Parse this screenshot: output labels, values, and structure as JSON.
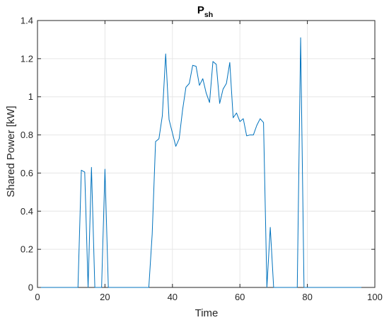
{
  "chart_data": {
    "type": "line",
    "title_main": "P",
    "title_sub": "sh",
    "xlabel": "Time",
    "ylabel": "Shared Power [kW]",
    "xlim": [
      0,
      100
    ],
    "ylim": [
      0,
      1.4
    ],
    "xticks": [
      0,
      20,
      40,
      60,
      80,
      100
    ],
    "xtick_labels": [
      "0",
      "20",
      "40",
      "60",
      "80",
      "100"
    ],
    "yticks": [
      0,
      0.2,
      0.4,
      0.6,
      0.8,
      1,
      1.2,
      1.4
    ],
    "ytick_labels": [
      "0",
      "0.2",
      "0.4",
      "0.6",
      "0.8",
      "1",
      "1.2",
      "1.4"
    ],
    "grid": true,
    "colors": {
      "line": "#0072bd",
      "axis": "#262626",
      "grid": "#e6e6e6"
    },
    "series": [
      {
        "x": [
          1,
          2,
          3,
          4,
          5,
          6,
          7,
          8,
          9,
          10,
          11,
          12,
          13,
          14,
          15,
          16,
          17,
          18,
          19,
          20,
          21,
          22,
          23,
          24,
          25,
          26,
          27,
          28,
          29,
          30,
          31,
          32,
          33,
          34,
          35,
          36,
          37,
          38,
          39,
          40,
          41,
          42,
          43,
          44,
          45,
          46,
          47,
          48,
          49,
          50,
          51,
          52,
          53,
          54,
          55,
          56,
          57,
          58,
          59,
          60,
          61,
          62,
          63,
          64,
          65,
          66,
          67,
          68,
          69,
          70,
          71,
          72,
          73,
          74,
          75,
          76,
          77,
          78,
          79,
          80,
          81,
          82,
          83,
          84,
          85,
          86,
          87,
          88,
          89,
          90,
          91,
          92,
          93,
          94,
          95,
          96
        ],
        "y": [
          0,
          0,
          0,
          0,
          0,
          0,
          0,
          0,
          0,
          0,
          0,
          0,
          0.615,
          0.605,
          0,
          0.63,
          0,
          0,
          0,
          0.62,
          0,
          0,
          0,
          0,
          0,
          0,
          0,
          0,
          0,
          0,
          0,
          0,
          0,
          0.28,
          0.765,
          0.78,
          0.9,
          1.225,
          0.88,
          0.81,
          0.74,
          0.78,
          0.93,
          1.05,
          1.07,
          1.165,
          1.16,
          1.06,
          1.095,
          1.02,
          0.97,
          1.185,
          1.17,
          0.965,
          1.04,
          1.07,
          1.18,
          0.89,
          0.915,
          0.87,
          0.885,
          0.795,
          0.8,
          0.8,
          0.85,
          0.885,
          0.865,
          0,
          0.315,
          0,
          0,
          0,
          0,
          0,
          0,
          0,
          0,
          1.31,
          0,
          0,
          0,
          0,
          0,
          0,
          0,
          0,
          0,
          0,
          0,
          0,
          0,
          0,
          0,
          0,
          0,
          0
        ]
      }
    ]
  }
}
